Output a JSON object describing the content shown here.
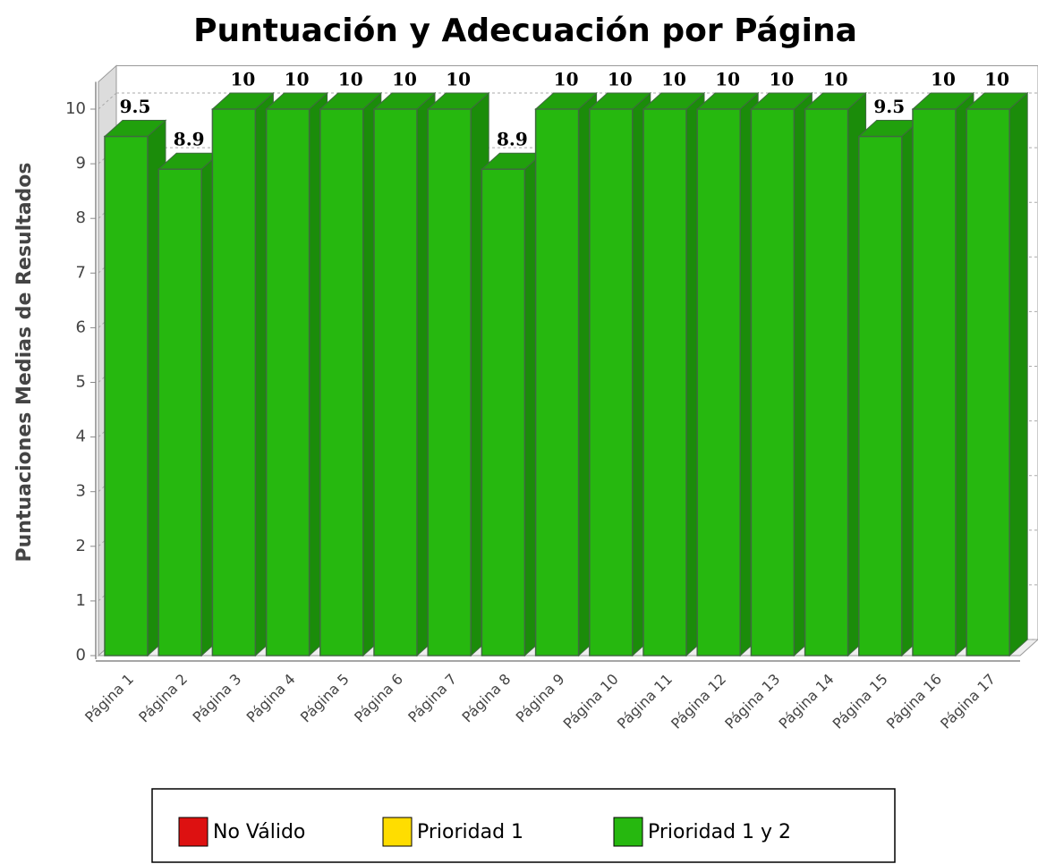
{
  "chart_data": {
    "type": "bar3d",
    "title": "Puntuación y Adecuación por Página",
    "y_label": "Puntuaciones Medias de Resultados",
    "categories": [
      "Página 1",
      "Página 2",
      "Página 3",
      "Página 4",
      "Página 5",
      "Página 6",
      "Página 7",
      "Página 8",
      "Página 9",
      "Página 10",
      "Página 11",
      "Página 12",
      "Página 13",
      "Página 14",
      "Página 15",
      "Página 16",
      "Página 17"
    ],
    "values": [
      9.5,
      8.9,
      10,
      10,
      10,
      10,
      10,
      8.9,
      10,
      10,
      10,
      10,
      10,
      10,
      9.5,
      10,
      10
    ],
    "color": "#26b80f",
    "ylim": [
      0,
      10.5
    ],
    "yticks": [
      0,
      1,
      2,
      3,
      4,
      5,
      6,
      7,
      8,
      9,
      10
    ],
    "legend": [
      {
        "name": "No Válido",
        "color": "#dd1111"
      },
      {
        "name": "Prioridad 1",
        "color": "#ffdd00"
      },
      {
        "name": "Prioridad 1 y 2",
        "color": "#26b80f"
      }
    ]
  }
}
